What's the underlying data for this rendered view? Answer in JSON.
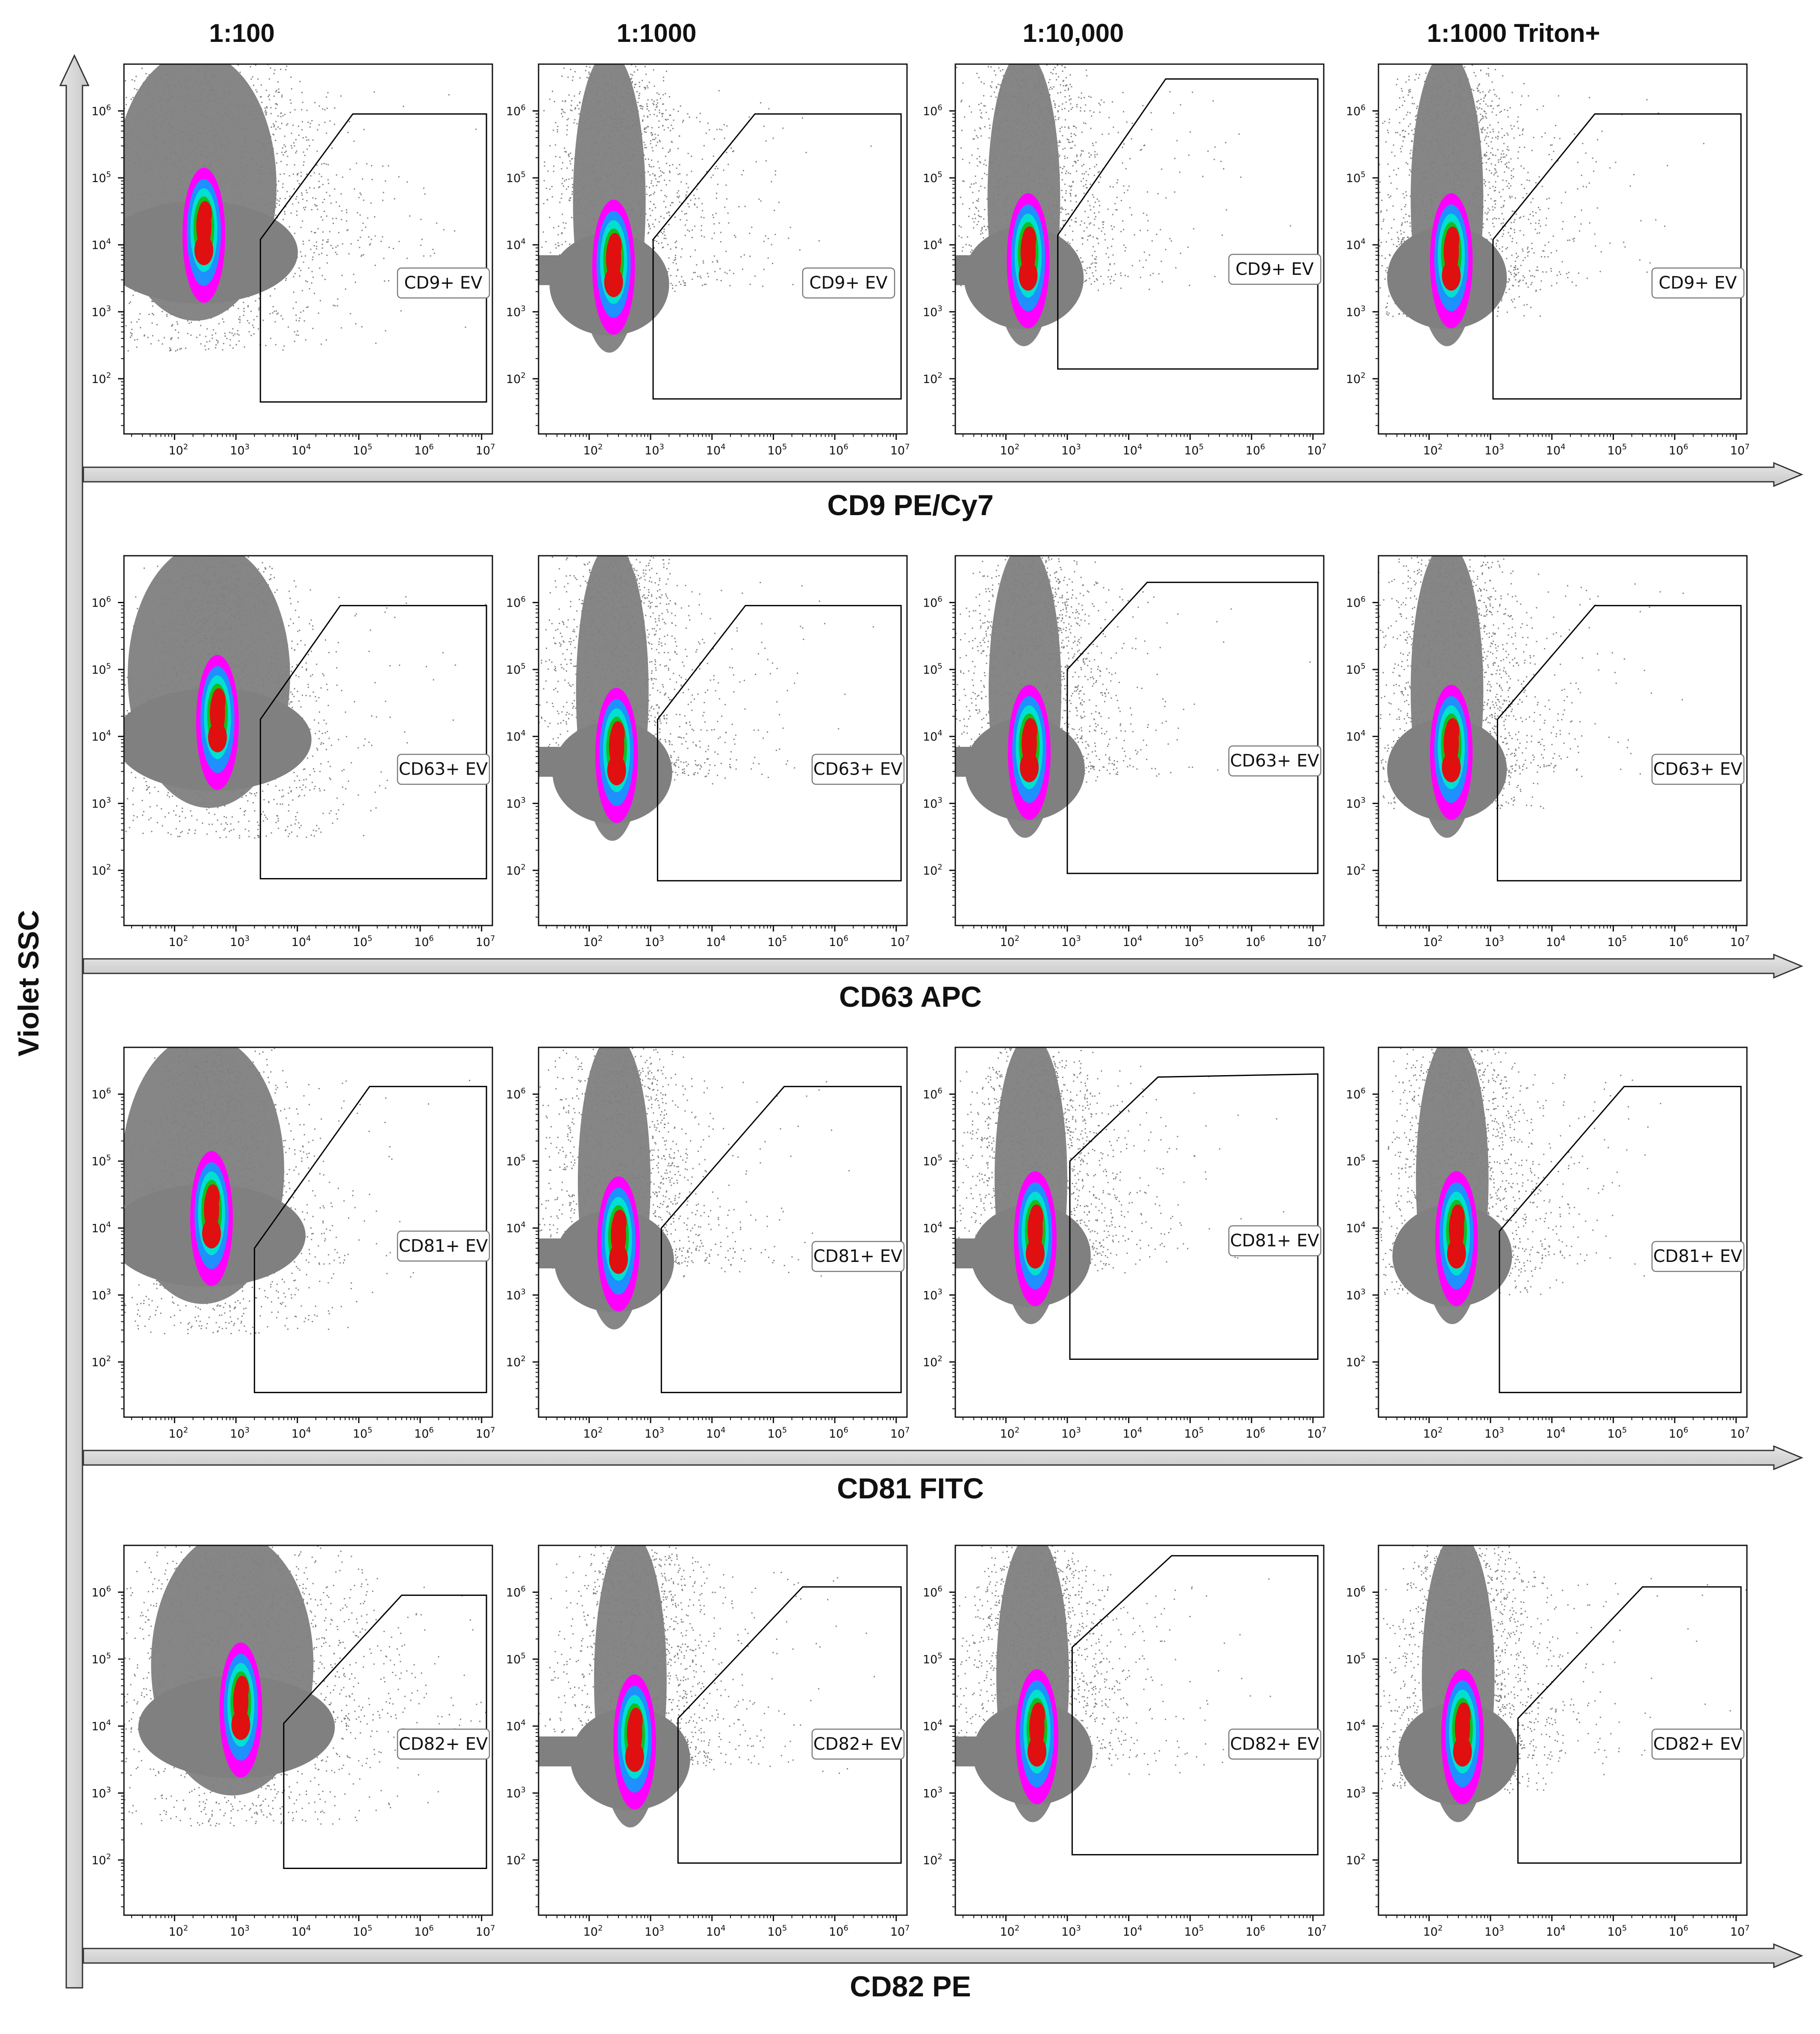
{
  "chart_data": {
    "type": "scatter",
    "subtype": "flow-cytometry-density-grid",
    "y_axis_label": "Violet SSC",
    "columns": [
      "1:100",
      "1:1000",
      "1:10,000",
      "1:1000 Triton+"
    ],
    "axis_scale": "log10",
    "xlim": [
      15,
      15000000
    ],
    "ylim": [
      15,
      5000000
    ],
    "x_ticks": [
      {
        "base": "10",
        "exp": "2"
      },
      {
        "base": "10",
        "exp": "3"
      },
      {
        "base": "10",
        "exp": "4"
      },
      {
        "base": "10",
        "exp": "5"
      },
      {
        "base": "10",
        "exp": "6"
      },
      {
        "base": "10",
        "exp": "7"
      }
    ],
    "y_ticks": [
      {
        "base": "10",
        "exp": "2"
      },
      {
        "base": "10",
        "exp": "3"
      },
      {
        "base": "10",
        "exp": "4"
      },
      {
        "base": "10",
        "exp": "5"
      },
      {
        "base": "10",
        "exp": "6"
      }
    ],
    "density_colors": [
      "#808080",
      "#ff00ff",
      "#1e90ff",
      "#00e0d0",
      "#10c020",
      "#e01010"
    ],
    "gate_line_color": "#000000",
    "rows": [
      {
        "x_label": "CD9 PE/Cy7",
        "gate_label": "CD9+ EV",
        "panels": [
          {
            "column": "1:100",
            "cloud": {
              "x": 300,
              "y": 12000
            },
            "gate": [
              [
                2500,
                45
              ],
              [
                2500,
                12000
              ],
              [
                80000,
                900000
              ],
              [
                12000000,
                900000
              ],
              [
                12000000,
                45
              ]
            ],
            "label_pos": [
              600000,
              2500
            ]
          },
          {
            "column": "1:1000",
            "cloud": {
              "x": 250,
              "y": 4000
            },
            "gate": [
              [
                1100,
                50
              ],
              [
                1100,
                12000
              ],
              [
                50000,
                900000
              ],
              [
                12000000,
                900000
              ],
              [
                12000000,
                50
              ]
            ],
            "label_pos": [
              300000,
              2500
            ]
          },
          {
            "column": "1:10,000",
            "cloud": {
              "x": 230,
              "y": 5000
            },
            "gate": [
              [
                700,
                140
              ],
              [
                700,
                14000
              ],
              [
                40000,
                3000000
              ],
              [
                12000000,
                3000000
              ],
              [
                12000000,
                140
              ]
            ],
            "label_pos": [
              800000,
              4000
            ]
          },
          {
            "column": "1:1000 Triton+",
            "cloud": {
              "x": 230,
              "y": 5000
            },
            "gate": [
              [
                1100,
                50
              ],
              [
                1100,
                12000
              ],
              [
                50000,
                900000
              ],
              [
                12000000,
                900000
              ],
              [
                12000000,
                50
              ]
            ],
            "label_pos": [
              1200000,
              2500
            ]
          }
        ]
      },
      {
        "x_label": "CD63 APC",
        "gate_label": "CD63+ EV",
        "panels": [
          {
            "column": "1:100",
            "cloud": {
              "x": 500,
              "y": 14000
            },
            "gate": [
              [
                2500,
                75
              ],
              [
                2500,
                18000
              ],
              [
                50000,
                900000
              ],
              [
                12000000,
                900000
              ],
              [
                12000000,
                75
              ]
            ],
            "label_pos": [
              600000,
              3000
            ]
          },
          {
            "column": "1:1000",
            "cloud": {
              "x": 280,
              "y": 4500
            },
            "gate": [
              [
                1300,
                70
              ],
              [
                1300,
                18000
              ],
              [
                35000,
                900000
              ],
              [
                12000000,
                900000
              ],
              [
                12000000,
                70
              ]
            ],
            "label_pos": [
              600000,
              3000
            ]
          },
          {
            "column": "1:10,000",
            "cloud": {
              "x": 240,
              "y": 5000
            },
            "gate": [
              [
                1000,
                90
              ],
              [
                1000,
                100000
              ],
              [
                20000,
                2000000
              ],
              [
                12000000,
                2000000
              ],
              [
                12000000,
                90
              ]
            ],
            "label_pos": [
              800000,
              4000
            ]
          },
          {
            "column": "1:1000 Triton+",
            "cloud": {
              "x": 230,
              "y": 5000
            },
            "gate": [
              [
                1300,
                70
              ],
              [
                1300,
                18000
              ],
              [
                50000,
                900000
              ],
              [
                12000000,
                900000
              ],
              [
                12000000,
                70
              ]
            ],
            "label_pos": [
              1200000,
              3000
            ]
          }
        ]
      },
      {
        "x_label": "CD81 FITC",
        "gate_label": "CD81+ EV",
        "panels": [
          {
            "column": "1:100",
            "cloud": {
              "x": 400,
              "y": 12000
            },
            "gate": [
              [
                2000,
                35
              ],
              [
                2000,
                5000
              ],
              [
                150000,
                1300000
              ],
              [
                12000000,
                1300000
              ],
              [
                12000000,
                35
              ]
            ],
            "label_pos": [
              500000,
              5000
            ]
          },
          {
            "column": "1:1000",
            "cloud": {
              "x": 300,
              "y": 5000
            },
            "gate": [
              [
                1500,
                35
              ],
              [
                1500,
                10000
              ],
              [
                150000,
                1300000
              ],
              [
                12000000,
                1300000
              ],
              [
                12000000,
                35
              ]
            ],
            "label_pos": [
              600000,
              3500
            ]
          },
          {
            "column": "1:10,000",
            "cloud": {
              "x": 300,
              "y": 6000
            },
            "gate": [
              [
                1100,
                110
              ],
              [
                1100,
                100000
              ],
              [
                30000,
                1800000
              ],
              [
                12000000,
                2000000
              ],
              [
                12000000,
                110
              ]
            ],
            "label_pos": [
              800000,
              6000
            ]
          },
          {
            "column": "1:1000 Triton+",
            "cloud": {
              "x": 280,
              "y": 6000
            },
            "gate": [
              [
                1400,
                35
              ],
              [
                1400,
                9000
              ],
              [
                150000,
                1300000
              ],
              [
                12000000,
                1300000
              ],
              [
                12000000,
                35
              ]
            ],
            "label_pos": [
              1200000,
              3500
            ]
          }
        ]
      },
      {
        "x_label": "CD82 PE",
        "gate_label": "CD82+ EV",
        "panels": [
          {
            "column": "1:100",
            "cloud": {
              "x": 1200,
              "y": 15000
            },
            "gate": [
              [
                6000,
                75
              ],
              [
                6000,
                11000
              ],
              [
                500000,
                900000
              ],
              [
                12000000,
                900000
              ],
              [
                12000000,
                75
              ]
            ],
            "label_pos": [
              1000000,
              5000
            ]
          },
          {
            "column": "1:1000",
            "cloud": {
              "x": 550,
              "y": 5000
            },
            "gate": [
              [
                2800,
                90
              ],
              [
                2800,
                13000
              ],
              [
                300000,
                1200000
              ],
              [
                12000000,
                1200000
              ],
              [
                12000000,
                90
              ]
            ],
            "label_pos": [
              600000,
              5000
            ]
          },
          {
            "column": "1:10,000",
            "cloud": {
              "x": 320,
              "y": 6000
            },
            "gate": [
              [
                1200,
                120
              ],
              [
                1200,
                150000
              ],
              [
                50000,
                3500000
              ],
              [
                12000000,
                3500000
              ],
              [
                12000000,
                120
              ]
            ],
            "label_pos": [
              800000,
              5000
            ]
          },
          {
            "column": "1:1000 Triton+",
            "cloud": {
              "x": 350,
              "y": 6000
            },
            "gate": [
              [
                2800,
                90
              ],
              [
                2800,
                13000
              ],
              [
                300000,
                1200000
              ],
              [
                12000000,
                1200000
              ],
              [
                12000000,
                90
              ]
            ],
            "label_pos": [
              1200000,
              5000
            ]
          }
        ]
      }
    ]
  }
}
